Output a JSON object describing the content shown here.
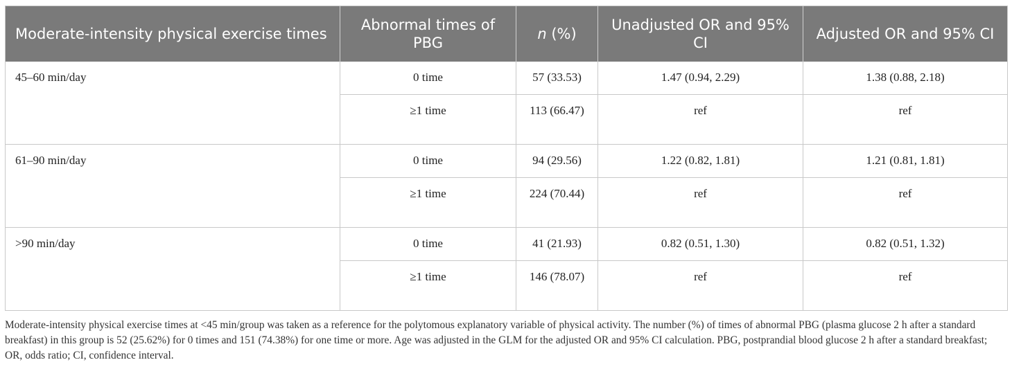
{
  "table": {
    "headers": {
      "group": "Moderate-intensity physical exercise times",
      "abnormal": "Abnormal times of PBG",
      "n_italic": "n",
      "n_rest": " (%)",
      "unadjusted": "Unadjusted OR and 95% CI",
      "adjusted": "Adjusted OR and 95% CI"
    },
    "groups": [
      {
        "label": "45–60 min/day",
        "rows": [
          {
            "abnormal": "0 time",
            "n": "57 (33.53)",
            "unadjusted": "1.47 (0.94, 2.29)",
            "adjusted": "1.38 (0.88, 2.18)"
          },
          {
            "abnormal": "≥1 time",
            "n": "113 (66.47)",
            "unadjusted": "ref",
            "adjusted": "ref"
          }
        ]
      },
      {
        "label": "61–90 min/day",
        "rows": [
          {
            "abnormal": "0 time",
            "n": "94 (29.56)",
            "unadjusted": "1.22 (0.82, 1.81)",
            "adjusted": "1.21 (0.81, 1.81)"
          },
          {
            "abnormal": "≥1 time",
            "n": "224 (70.44)",
            "unadjusted": "ref",
            "adjusted": "ref"
          }
        ]
      },
      {
        "label": ">90 min/day",
        "rows": [
          {
            "abnormal": "0 time",
            "n": "41 (21.93)",
            "unadjusted": "0.82 (0.51, 1.30)",
            "adjusted": "0.82 (0.51, 1.32)"
          },
          {
            "abnormal": "≥1 time",
            "n": "146 (78.07)",
            "unadjusted": "ref",
            "adjusted": "ref"
          }
        ]
      }
    ]
  },
  "footnote": "Moderate-intensity physical exercise times at <45 min/group was taken as a reference for the polytomous explanatory variable of physical activity. The number (%) of times of abnormal PBG (plasma glucose 2 h after a standard breakfast) in this group is 52 (25.62%) for 0 times and 151 (74.38%) for one time or more. Age was adjusted in the GLM for the adjusted OR and 95% CI calculation. PBG, postprandial blood glucose 2 h after a standard breakfast; OR, odds ratio; CI, confidence interval.",
  "colors": {
    "header_bg": "#7a7a7a",
    "header_text": "#ffffff",
    "border": "#c8c8c8"
  }
}
